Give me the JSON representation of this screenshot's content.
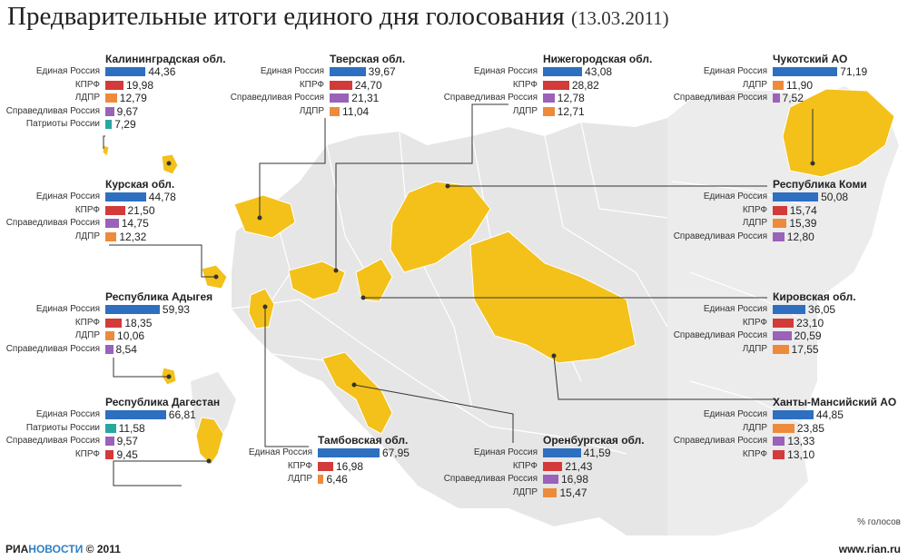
{
  "title": "Предварительные итоги единого дня голосования",
  "date": "(13.03.2011)",
  "unit": "% голосов",
  "brand_a": "РИА",
  "brand_b": "НОВОСТИ",
  "copyright": "© 2011",
  "site": "www.rian.ru",
  "colors": {
    "Единая Россия": "#2e6fc0",
    "КПРФ": "#d33a3a",
    "ЛДПР": "#ee8a3c",
    "Справедливая Россия": "#9a62b8",
    "Патриоты России": "#2aa6a0",
    "region": "#f3c11a",
    "land": "#e6e6e6",
    "border": "#ffffff",
    "leader": "#333333"
  },
  "chart_data": [
    {
      "type": "bar",
      "title": "Калининградская обл.",
      "categories": [
        "Единая Россия",
        "КПРФ",
        "ЛДПР",
        "Справедливая Россия",
        "Патриоты России"
      ],
      "values": [
        44.36,
        19.98,
        12.79,
        9.67,
        7.29
      ],
      "labels": [
        "44,36",
        "19,98",
        "12,79",
        "9,67",
        "7,29"
      ]
    },
    {
      "type": "bar",
      "title": "Тверская обл.",
      "categories": [
        "Единая Россия",
        "КПРФ",
        "Справедливая Россия",
        "ЛДПР"
      ],
      "values": [
        39.67,
        24.7,
        21.31,
        11.04
      ],
      "labels": [
        "39,67",
        "24,70",
        "21,31",
        "11,04"
      ]
    },
    {
      "type": "bar",
      "title": "Нижегородская обл.",
      "categories": [
        "Единая Россия",
        "КПРФ",
        "Справедливая Россия",
        "ЛДПР"
      ],
      "values": [
        43.08,
        28.82,
        12.78,
        12.71
      ],
      "labels": [
        "43,08",
        "28,82",
        "12,78",
        "12,71"
      ]
    },
    {
      "type": "bar",
      "title": "Чукотский АО",
      "categories": [
        "Единая Россия",
        "ЛДПР",
        "Справедливая Россия"
      ],
      "values": [
        71.19,
        11.9,
        7.52
      ],
      "labels": [
        "71,19",
        "11,90",
        "7,52"
      ]
    },
    {
      "type": "bar",
      "title": "Курская обл.",
      "categories": [
        "Единая Россия",
        "КПРФ",
        "Справедливая Россия",
        "ЛДПР"
      ],
      "values": [
        44.78,
        21.5,
        14.75,
        12.32
      ],
      "labels": [
        "44,78",
        "21,50",
        "14,75",
        "12,32"
      ]
    },
    {
      "type": "bar",
      "title": "Республика Коми",
      "categories": [
        "Единая Россия",
        "КПРФ",
        "ЛДПР",
        "Справедливая Россия"
      ],
      "values": [
        50.08,
        15.74,
        15.39,
        12.8
      ],
      "labels": [
        "50,08",
        "15,74",
        "15,39",
        "12,80"
      ]
    },
    {
      "type": "bar",
      "title": "Республика Адыгея",
      "categories": [
        "Единая Россия",
        "КПРФ",
        "ЛДПР",
        "Справедливая Россия"
      ],
      "values": [
        59.93,
        18.35,
        10.06,
        8.54
      ],
      "labels": [
        "59,93",
        "18,35",
        "10,06",
        "8,54"
      ]
    },
    {
      "type": "bar",
      "title": "Кировская обл.",
      "categories": [
        "Единая Россия",
        "КПРФ",
        "Справедливая Россия",
        "ЛДПР"
      ],
      "values": [
        36.05,
        23.1,
        20.59,
        17.55
      ],
      "labels": [
        "36,05",
        "23,10",
        "20,59",
        "17,55"
      ]
    },
    {
      "type": "bar",
      "title": "Республика Дагестан",
      "categories": [
        "Единая Россия",
        "Патриоты России",
        "Справедливая Россия",
        "КПРФ"
      ],
      "values": [
        66.81,
        11.58,
        9.57,
        9.45
      ],
      "labels": [
        "66,81",
        "11,58",
        "9,57",
        "9,45"
      ]
    },
    {
      "type": "bar",
      "title": "Ханты-Мансийский АО",
      "categories": [
        "Единая Россия",
        "ЛДПР",
        "Справедливая Россия",
        "КПРФ"
      ],
      "values": [
        44.85,
        23.85,
        13.33,
        13.1
      ],
      "labels": [
        "44,85",
        "23,85",
        "13,33",
        "13,10"
      ]
    },
    {
      "type": "bar",
      "title": "Тамбовская обл.",
      "categories": [
        "Единая Россия",
        "КПРФ",
        "ЛДПР"
      ],
      "values": [
        67.95,
        16.98,
        6.46
      ],
      "labels": [
        "67,95",
        "16,98",
        "6,46"
      ]
    },
    {
      "type": "bar",
      "title": "Оренбургская обл.",
      "categories": [
        "Единая Россия",
        "КПРФ",
        "Справедливая Россия",
        "ЛДПР"
      ],
      "values": [
        41.59,
        21.43,
        16.98,
        15.47
      ],
      "labels": [
        "41,59",
        "21,43",
        "16,98",
        "15,47"
      ]
    }
  ]
}
